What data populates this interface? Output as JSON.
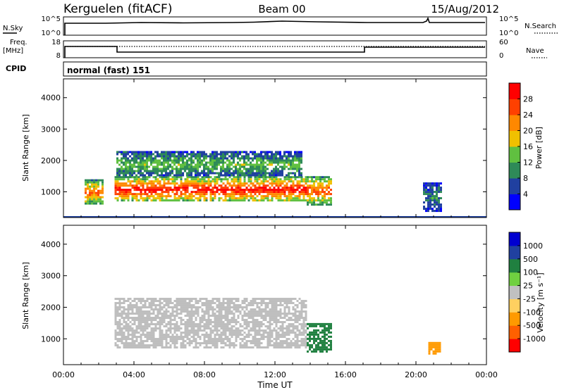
{
  "header": {
    "site": "Kerguelen (fitACF)",
    "beam": "Beam 00",
    "date": "15/Aug/2012"
  },
  "status_panels": {
    "nsky": {
      "label": "N.Sky",
      "ticks": [
        "10^5",
        "10^0"
      ]
    },
    "nsearch": {
      "label": "N.Search",
      "ticks": [
        "10^5",
        "10^0"
      ]
    },
    "freq": {
      "label_line1": "Freq.",
      "label_line2": "[MHz]",
      "ticks": [
        "18",
        "8"
      ]
    },
    "nave": {
      "label": "Nave",
      "ticks": [
        "60",
        "0"
      ]
    },
    "cpid": {
      "label": "CPID",
      "value": "normal (fast) 151"
    }
  },
  "colors": {
    "power_scale": [
      "#0000ff",
      "#2040a0",
      "#2e8a58",
      "#60c040",
      "#f0c000",
      "#ff8800",
      "#ff4000",
      "#ff0000"
    ],
    "velocity_scale": [
      "#0000d0",
      "#2040a0",
      "#208040",
      "#70d040",
      "#c0c0c0",
      "#ffd060",
      "#ff9a00",
      "#ff6000",
      "#ff0000"
    ],
    "ground_scatter": "#bebebe"
  },
  "chart_data": [
    {
      "type": "heatmap",
      "panel": "power",
      "xlabel": "Time UT",
      "ylabel": "Slant Range [km]",
      "xlim": [
        0,
        24
      ],
      "ylim": [
        180,
        4600
      ],
      "x_ticks": [
        "00:00",
        "04:00",
        "08:00",
        "12:00",
        "16:00",
        "20:00",
        "00:00"
      ],
      "y_ticks": [
        "1000",
        "2000",
        "3000",
        "4000"
      ],
      "colorbar": {
        "label": "Power [dB]",
        "ticks": [
          "28",
          "24",
          "20",
          "16",
          "12",
          "8",
          "4"
        ],
        "range": [
          0,
          32
        ]
      },
      "regions": [
        {
          "t_start": 1.2,
          "t_end": 2.2,
          "r_start": 600,
          "r_end": 1400,
          "peak_db": 25
        },
        {
          "t_start": 2.9,
          "t_end": 13.8,
          "r_start": 700,
          "r_end": 1500,
          "peak_db": 30
        },
        {
          "t_start": 3.0,
          "t_end": 13.5,
          "r_start": 1500,
          "r_end": 2300,
          "peak_db": 14
        },
        {
          "t_start": 13.8,
          "t_end": 15.2,
          "r_start": 600,
          "r_end": 1500,
          "peak_db": 26
        },
        {
          "t_start": 20.4,
          "t_end": 21.4,
          "r_start": 400,
          "r_end": 1300,
          "peak_db": 10
        }
      ]
    },
    {
      "type": "heatmap",
      "panel": "velocity",
      "xlabel": "Time UT",
      "ylabel": "Slant Range [km]",
      "xlim": [
        0,
        24
      ],
      "ylim": [
        180,
        4600
      ],
      "x_ticks": [
        "00:00",
        "04:00",
        "08:00",
        "12:00",
        "16:00",
        "20:00",
        "00:00"
      ],
      "y_ticks": [
        "1000",
        "2000",
        "3000",
        "4000"
      ],
      "colorbar": {
        "label": "Velocity [m s⁻¹]",
        "ticks": [
          "1000",
          "500",
          "100",
          "25",
          "-25",
          "-100",
          "-500",
          "-1000"
        ]
      },
      "regions": [
        {
          "t_start": 2.9,
          "t_end": 13.8,
          "r_start": 700,
          "r_end": 2300,
          "class": "ground_scatter"
        },
        {
          "t_start": 13.8,
          "t_end": 15.2,
          "r_start": 600,
          "r_end": 1500,
          "velocity": 150
        },
        {
          "t_start": 20.7,
          "t_end": 21.4,
          "r_start": 500,
          "r_end": 900,
          "velocity": -400
        }
      ]
    }
  ]
}
